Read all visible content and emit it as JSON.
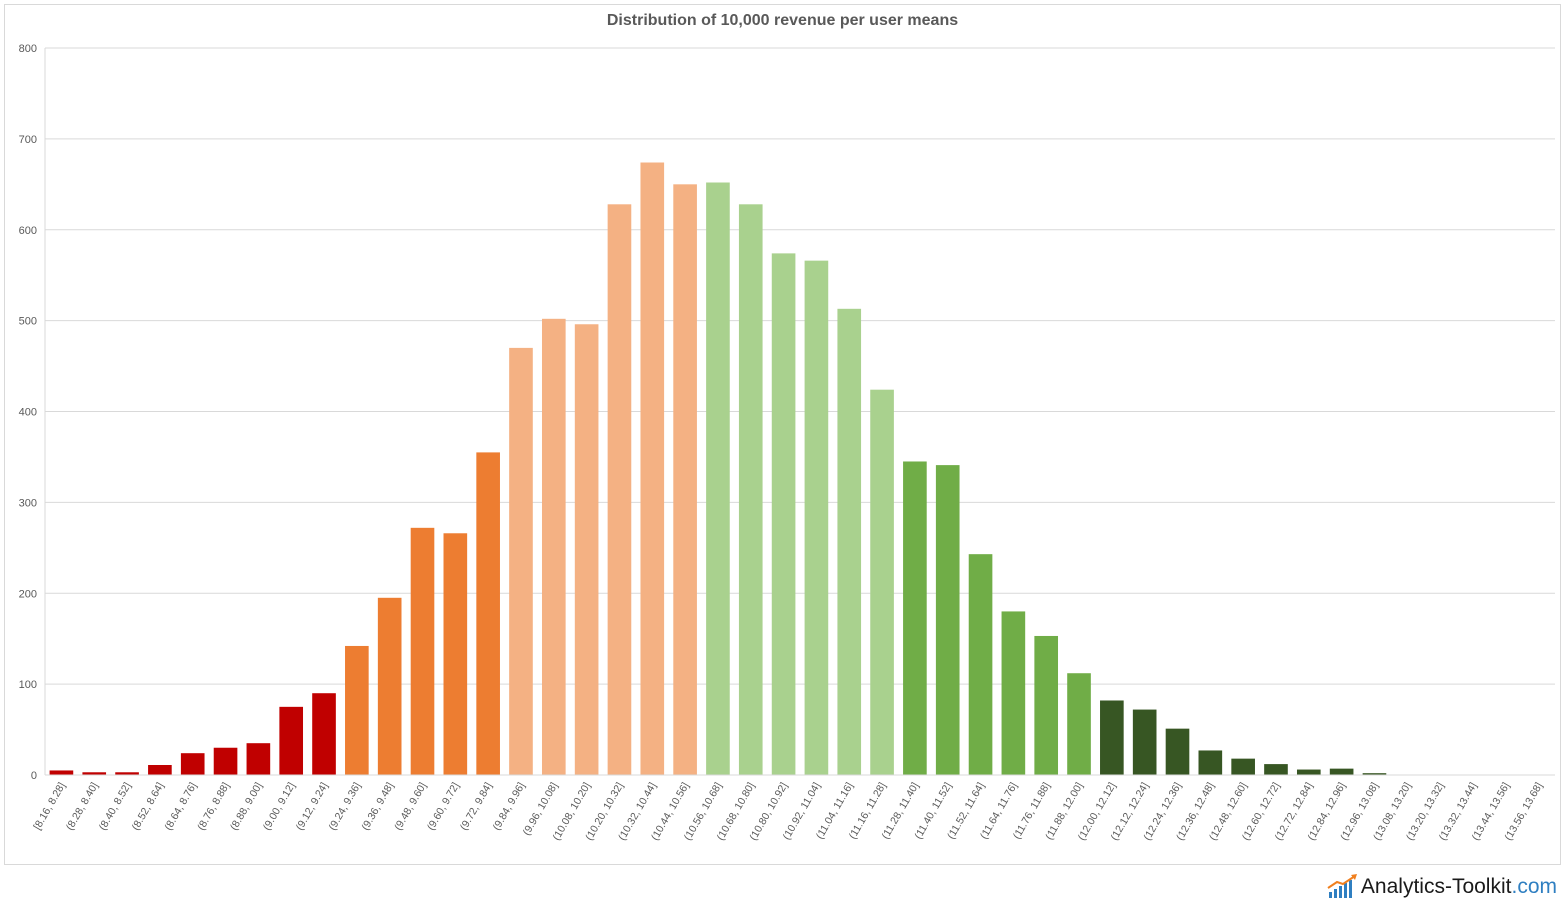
{
  "chart_data": {
    "type": "bar",
    "title": "Distribution of 10,000 revenue per user means",
    "xlabel": "",
    "ylabel": "",
    "ylim": [
      0,
      800
    ],
    "yticks": [
      0,
      100,
      200,
      300,
      400,
      500,
      600,
      700,
      800
    ],
    "grid": true,
    "legend": "none",
    "categories": [
      "[8.16, 8.28]",
      "(8.28, 8.40]",
      "(8.40, 8.52]",
      "(8.52, 8.64]",
      "(8.64, 8.76]",
      "(8.76, 8.88]",
      "(8.88, 9.00]",
      "(9.00, 9.12]",
      "(9.12, 9.24]",
      "(9.24, 9.36]",
      "(9.36, 9.48]",
      "(9.48, 9.60]",
      "(9.60, 9.72]",
      "(9.72, 9.84]",
      "(9.84, 9.96]",
      "(9.96, 10.08]",
      "(10.08, 10.20]",
      "(10.20, 10.32]",
      "(10.32, 10.44]",
      "(10.44, 10.56]",
      "(10.56, 10.68]",
      "(10.68, 10.80]",
      "(10.80, 10.92]",
      "(10.92, 11.04]",
      "(11.04, 11.16]",
      "(11.16, 11.28]",
      "(11.28, 11.40]",
      "(11.40, 11.52]",
      "(11.52, 11.64]",
      "(11.64, 11.76]",
      "(11.76, 11.88]",
      "(11.88, 12.00]",
      "(12.00, 12.12]",
      "(12.12, 12.24]",
      "(12.24, 12.36]",
      "(12.36, 12.48]",
      "(12.48, 12.60]",
      "(12.60, 12.72]",
      "(12.72, 12.84]",
      "(12.84, 12.96]",
      "(12.96, 13.08]",
      "(13.08, 13.20]",
      "(13.20, 13.32]",
      "(13.32, 13.44]",
      "(13.44, 13.56]",
      "(13.56, 13.68]"
    ],
    "values": [
      5,
      3,
      3,
      11,
      24,
      30,
      35,
      75,
      90,
      142,
      195,
      272,
      266,
      355,
      470,
      502,
      496,
      628,
      674,
      650,
      652,
      628,
      574,
      566,
      513,
      424,
      345,
      341,
      243,
      180,
      153,
      112,
      82,
      72,
      51,
      27,
      18,
      12,
      6,
      7,
      2,
      0,
      0,
      0,
      0,
      0
    ],
    "colors": [
      "#c00000",
      "#c00000",
      "#c00000",
      "#c00000",
      "#c00000",
      "#c00000",
      "#c00000",
      "#c00000",
      "#c00000",
      "#ed7d31",
      "#ed7d31",
      "#ed7d31",
      "#ed7d31",
      "#ed7d31",
      "#f4b183",
      "#f4b183",
      "#f4b183",
      "#f4b183",
      "#f4b183",
      "#f4b183",
      "#a9d18e",
      "#a9d18e",
      "#a9d18e",
      "#a9d18e",
      "#a9d18e",
      "#a9d18e",
      "#70ad47",
      "#70ad47",
      "#70ad47",
      "#70ad47",
      "#70ad47",
      "#70ad47",
      "#375623",
      "#375623",
      "#375623",
      "#375623",
      "#375623",
      "#375623",
      "#375623",
      "#375623",
      "#375623",
      "#375623",
      "#375623",
      "#375623",
      "#375623",
      "#375623"
    ]
  },
  "logo": {
    "brand": "Analytics-Toolkit",
    "suffix": ".com"
  }
}
